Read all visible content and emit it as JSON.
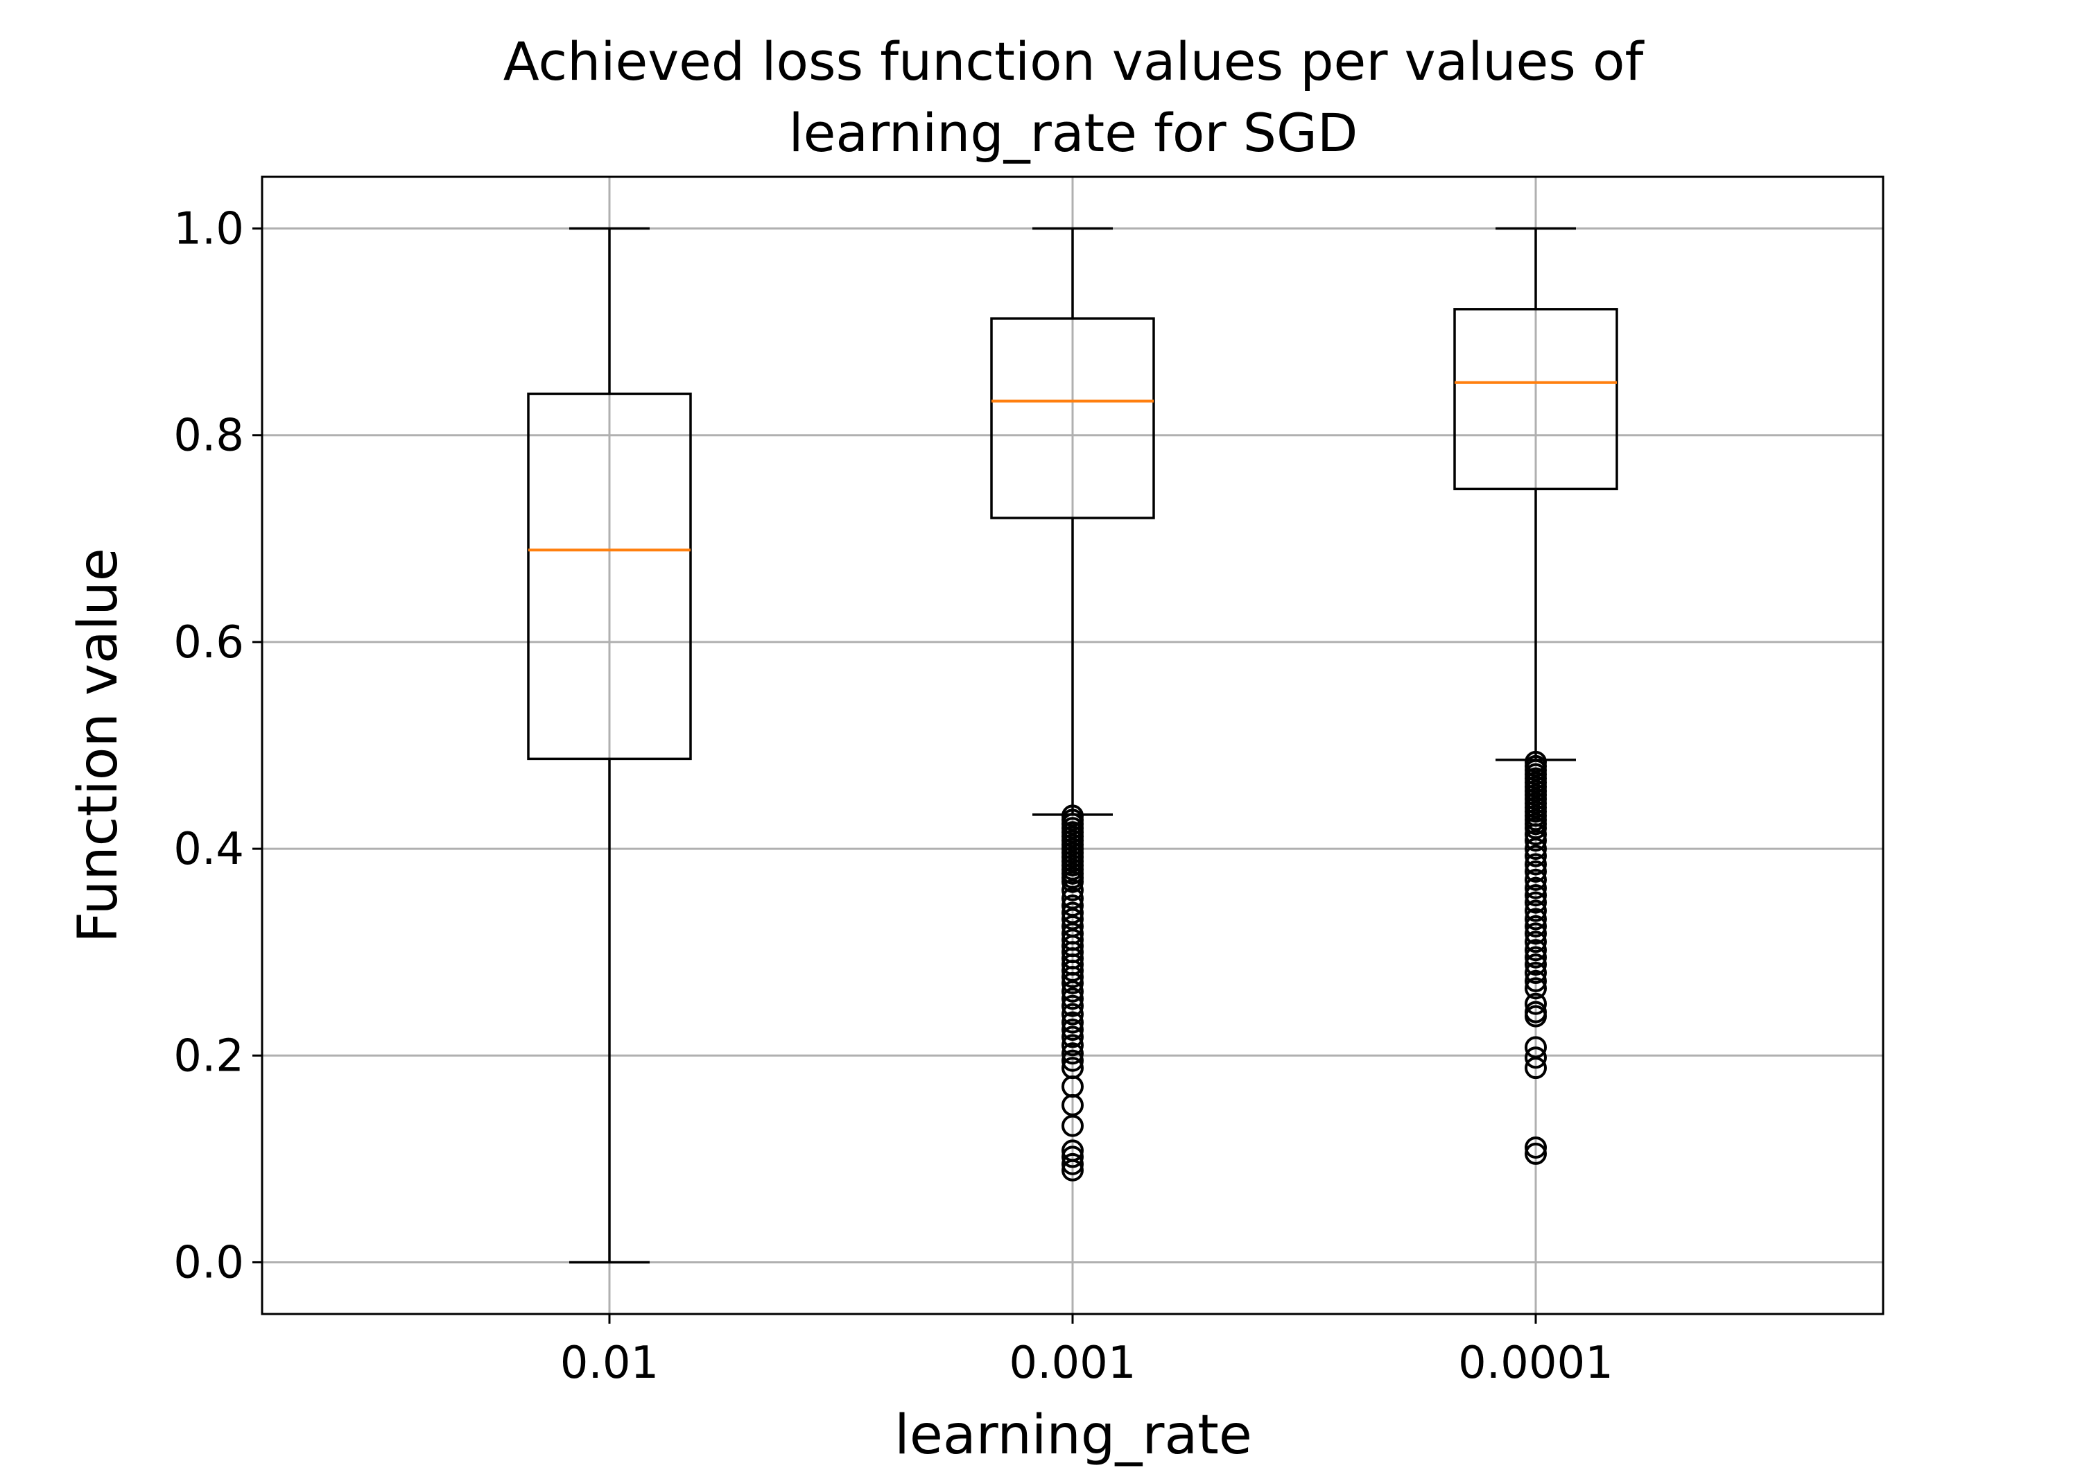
{
  "chart_data": {
    "type": "box",
    "title_lines": [
      "Achieved loss function values per values of",
      "learning_rate for SGD"
    ],
    "xlabel": "learning_rate",
    "ylabel": "Function value",
    "categories": [
      "0.01",
      "0.001",
      "0.0001"
    ],
    "ylim": [
      -0.05,
      1.05
    ],
    "yticks": [
      0.0,
      0.2,
      0.4,
      0.6,
      0.8,
      1.0
    ],
    "ytick_labels": [
      "0.0",
      "0.2",
      "0.4",
      "0.6",
      "0.8",
      "1.0"
    ],
    "grid": true,
    "median_color": "#ff7f0e",
    "box_color": "#000000",
    "boxes": [
      {
        "category": "0.01",
        "whisker_low": 0.0,
        "q1": 0.487,
        "median": 0.689,
        "q3": 0.84,
        "whisker_high": 1.0,
        "fliers": []
      },
      {
        "category": "0.001",
        "whisker_low": 0.433,
        "q1": 0.72,
        "median": 0.833,
        "q3": 0.913,
        "whisker_high": 1.0,
        "fliers": [
          0.432,
          0.428,
          0.424,
          0.42,
          0.416,
          0.412,
          0.408,
          0.404,
          0.4,
          0.396,
          0.392,
          0.388,
          0.384,
          0.38,
          0.376,
          0.372,
          0.368,
          0.36,
          0.352,
          0.345,
          0.338,
          0.332,
          0.325,
          0.318,
          0.312,
          0.306,
          0.3,
          0.294,
          0.288,
          0.282,
          0.276,
          0.27,
          0.262,
          0.255,
          0.248,
          0.24,
          0.232,
          0.225,
          0.218,
          0.21,
          0.202,
          0.195,
          0.188,
          0.17,
          0.152,
          0.132,
          0.108,
          0.102,
          0.095,
          0.089
        ]
      },
      {
        "category": "0.0001",
        "whisker_low": 0.486,
        "q1": 0.748,
        "median": 0.851,
        "q3": 0.922,
        "whisker_high": 1.0,
        "fliers": [
          0.484,
          0.48,
          0.476,
          0.472,
          0.468,
          0.464,
          0.46,
          0.456,
          0.452,
          0.448,
          0.444,
          0.44,
          0.436,
          0.432,
          0.428,
          0.424,
          0.42,
          0.414,
          0.408,
          0.4,
          0.393,
          0.385,
          0.378,
          0.37,
          0.362,
          0.355,
          0.348,
          0.34,
          0.332,
          0.325,
          0.318,
          0.31,
          0.302,
          0.295,
          0.288,
          0.28,
          0.272,
          0.265,
          0.25,
          0.242,
          0.238,
          0.208,
          0.198,
          0.188,
          0.111,
          0.105
        ]
      }
    ]
  }
}
